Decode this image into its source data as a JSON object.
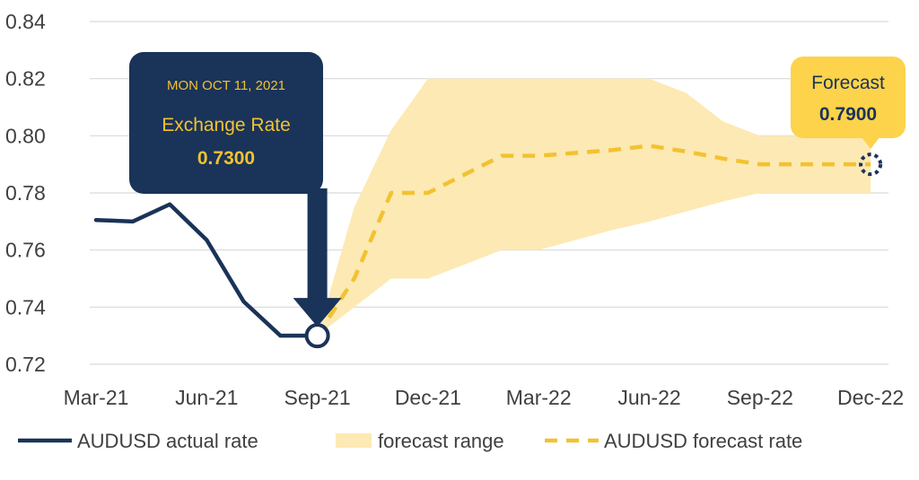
{
  "chart_data": {
    "type": "line",
    "y_ticks": [
      "0.72",
      "0.74",
      "0.76",
      "0.78",
      "0.80",
      "0.82",
      "0.84"
    ],
    "ylim": [
      0.72,
      0.84
    ],
    "x_ticks": [
      "Mar-21",
      "Jun-21",
      "Sep-21",
      "Dec-21",
      "Mar-22",
      "Jun-22",
      "Sep-22",
      "Dec-22"
    ],
    "grid": "horizontal",
    "legend_position": "bottom",
    "series": [
      {
        "name": "AUDUSD actual rate",
        "color": "#1a3358",
        "style": "solid",
        "points": [
          {
            "x": "Mar-21",
            "y": 0.7705
          },
          {
            "x": "Apr-21",
            "y": 0.77
          },
          {
            "x": "May-21",
            "y": 0.776
          },
          {
            "x": "Jun-21",
            "y": 0.7635
          },
          {
            "x": "Jul-21",
            "y": 0.742
          },
          {
            "x": "Aug-21",
            "y": 0.73
          },
          {
            "x": "Sep-21",
            "y": 0.73
          }
        ]
      },
      {
        "name": "forecast range",
        "color": "#fde9b3",
        "style": "band",
        "upper": [
          {
            "x": "Sep-21",
            "y": 0.73
          },
          {
            "x": "Oct-21",
            "y": 0.775
          },
          {
            "x": "Nov-21",
            "y": 0.802
          },
          {
            "x": "Dec-21",
            "y": 0.82
          },
          {
            "x": "Jan-22",
            "y": 0.82
          },
          {
            "x": "Feb-22",
            "y": 0.82
          },
          {
            "x": "Mar-22",
            "y": 0.82
          },
          {
            "x": "Apr-22",
            "y": 0.82
          },
          {
            "x": "May-22",
            "y": 0.82
          },
          {
            "x": "Jun-22",
            "y": 0.82
          },
          {
            "x": "Jul-22",
            "y": 0.815
          },
          {
            "x": "Aug-22",
            "y": 0.805
          },
          {
            "x": "Sep-22",
            "y": 0.8
          },
          {
            "x": "Oct-22",
            "y": 0.8
          },
          {
            "x": "Nov-22",
            "y": 0.8
          },
          {
            "x": "Dec-22",
            "y": 0.8
          }
        ],
        "lower": [
          {
            "x": "Sep-21",
            "y": 0.73
          },
          {
            "x": "Oct-21",
            "y": 0.74
          },
          {
            "x": "Nov-21",
            "y": 0.75
          },
          {
            "x": "Dec-21",
            "y": 0.75
          },
          {
            "x": "Jan-22",
            "y": 0.755
          },
          {
            "x": "Feb-22",
            "y": 0.76
          },
          {
            "x": "Mar-22",
            "y": 0.76
          },
          {
            "x": "Apr-22",
            "y": 0.7635
          },
          {
            "x": "May-22",
            "y": 0.767
          },
          {
            "x": "Jun-22",
            "y": 0.77
          },
          {
            "x": "Jul-22",
            "y": 0.7735
          },
          {
            "x": "Aug-22",
            "y": 0.777
          },
          {
            "x": "Sep-22",
            "y": 0.78
          },
          {
            "x": "Oct-22",
            "y": 0.78
          },
          {
            "x": "Nov-22",
            "y": 0.78
          },
          {
            "x": "Dec-22",
            "y": 0.78
          }
        ]
      },
      {
        "name": "AUDUSD forecast rate",
        "color": "#f2c230",
        "style": "dashed",
        "points": [
          {
            "x": "Sep-21",
            "y": 0.73
          },
          {
            "x": "Oct-21",
            "y": 0.75
          },
          {
            "x": "Nov-21",
            "y": 0.78
          },
          {
            "x": "Dec-21",
            "y": 0.78
          },
          {
            "x": "Jan-22",
            "y": 0.7865
          },
          {
            "x": "Feb-22",
            "y": 0.793
          },
          {
            "x": "Mar-22",
            "y": 0.793
          },
          {
            "x": "Apr-22",
            "y": 0.794
          },
          {
            "x": "May-22",
            "y": 0.795
          },
          {
            "x": "Jun-22",
            "y": 0.7965
          },
          {
            "x": "Jul-22",
            "y": 0.7945
          },
          {
            "x": "Aug-22",
            "y": 0.792
          },
          {
            "x": "Sep-22",
            "y": 0.79
          },
          {
            "x": "Oct-22",
            "y": 0.79
          },
          {
            "x": "Nov-22",
            "y": 0.79
          },
          {
            "x": "Dec-22",
            "y": 0.79
          }
        ]
      }
    ],
    "annotations": [
      {
        "id": "actual",
        "date": "MON OCT 11, 2021",
        "label": "Exchange Rate",
        "value": "0.7300",
        "x": "Sep-21",
        "y": 0.73,
        "bg": "#1a3358",
        "text_color": "#f2c230"
      },
      {
        "id": "forecast",
        "label": "Forecast",
        "value": "0.7900",
        "x": "Dec-22",
        "y": 0.79,
        "bg": "#fcd34a",
        "text_color": "#1a3358"
      }
    ]
  }
}
